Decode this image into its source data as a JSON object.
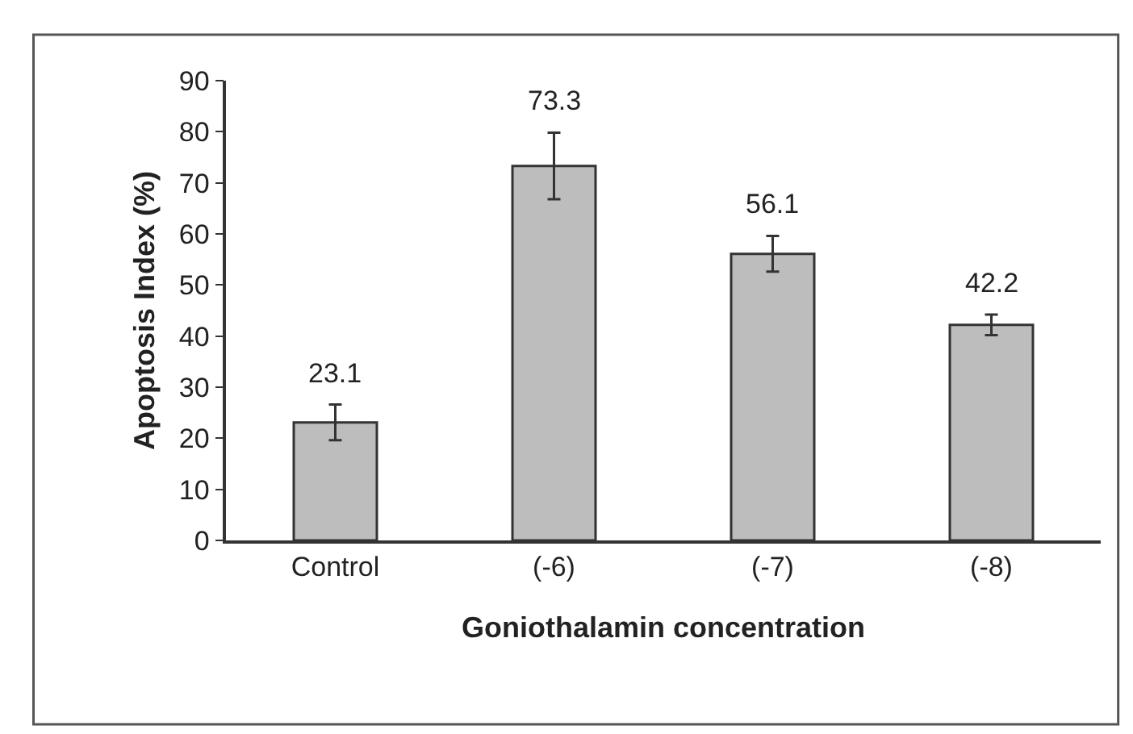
{
  "chart_data": {
    "type": "bar",
    "xlabel": "Goniothalamin concentration",
    "ylabel": "Apoptosis Index (%)",
    "categories": [
      "Control",
      "(-6)",
      "(-7)",
      "(-8)"
    ],
    "values": [
      23.1,
      73.3,
      56.1,
      42.2
    ],
    "errors": [
      3.5,
      6.5,
      3.5,
      2
    ],
    "color": "#bdbdbd",
    "data_labels": true,
    "ylim": [
      0,
      90
    ],
    "yticks": [
      0,
      10,
      20,
      30,
      40,
      50,
      60,
      70,
      80,
      90
    ],
    "grid": false,
    "legend": false
  }
}
